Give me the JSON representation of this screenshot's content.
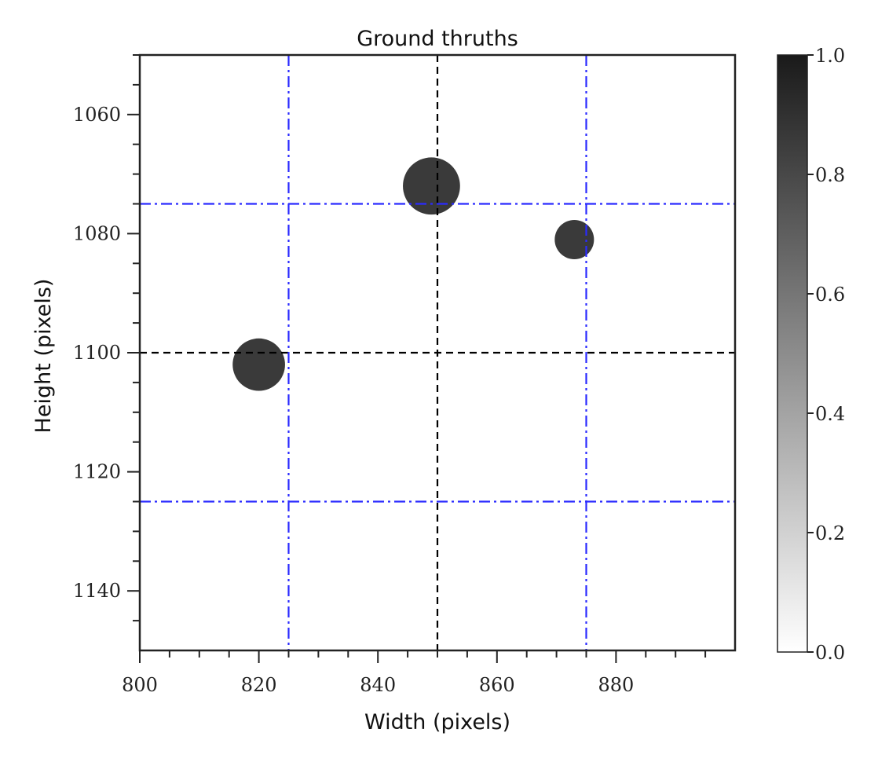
{
  "chart_data": {
    "type": "heatmap",
    "title": "Ground thruths",
    "xlabel": "Width (pixels)",
    "ylabel": "Height (pixels)",
    "xlim": [
      800,
      899
    ],
    "ylim": [
      1149,
      1050
    ],
    "xticks": [
      800,
      820,
      840,
      860,
      880
    ],
    "yticks": [
      1060,
      1080,
      1100,
      1120,
      1140
    ],
    "colorbar": {
      "range": [
        0.0,
        1.0
      ],
      "ticks": [
        "0.0",
        "0.2",
        "0.4",
        "0.6",
        "0.8",
        "1.0"
      ],
      "colormap": "white-to-black"
    },
    "blobs": [
      {
        "x": 849,
        "y": 1072,
        "value": 1.0
      },
      {
        "x": 873,
        "y": 1081,
        "value": 1.0
      },
      {
        "x": 820,
        "y": 1102,
        "value": 1.0
      }
    ],
    "reference_lines": [
      {
        "orientation": "vertical",
        "value": 850,
        "style": "dashed",
        "color": "#000000"
      },
      {
        "orientation": "horizontal",
        "value": 1100,
        "style": "dashed",
        "color": "#000000"
      },
      {
        "orientation": "vertical",
        "value": 825,
        "style": "dash-dot",
        "color": "#2a2aff"
      },
      {
        "orientation": "vertical",
        "value": 875,
        "style": "dash-dot",
        "color": "#2a2aff"
      },
      {
        "orientation": "horizontal",
        "value": 1075,
        "style": "dash-dot",
        "color": "#2a2aff"
      },
      {
        "orientation": "horizontal",
        "value": 1125,
        "style": "dash-dot",
        "color": "#2a2aff"
      }
    ],
    "grid": false
  }
}
